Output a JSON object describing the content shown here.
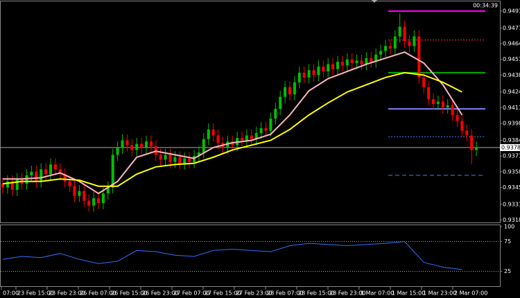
{
  "chart_data": {
    "type": "candlestick",
    "timer": "00:34:39",
    "up_color": "#00c000",
    "down_color": "#ff0000",
    "open": [
      0.9348,
      0.9345,
      0.935,
      0.9343,
      0.9352,
      0.9348,
      0.9355,
      0.9358,
      0.935,
      0.936,
      0.9356,
      0.9364,
      0.936,
      0.9356,
      0.935,
      0.9346,
      0.9338,
      0.9342,
      0.9334,
      0.933,
      0.9336,
      0.9332,
      0.934,
      0.9345,
      0.9372,
      0.9378,
      0.9384,
      0.938,
      0.9376,
      0.9381,
      0.9378,
      0.9383,
      0.9379,
      0.9372,
      0.9368,
      0.9372,
      0.9366,
      0.937,
      0.9365,
      0.9369,
      0.9366,
      0.9371,
      0.9374,
      0.9385,
      0.9393,
      0.9388,
      0.9382,
      0.9378,
      0.9383,
      0.938,
      0.9386,
      0.9384,
      0.9388,
      0.9385,
      0.939,
      0.9394,
      0.9392,
      0.9402,
      0.941,
      0.942,
      0.9428,
      0.9422,
      0.9432,
      0.944,
      0.9436,
      0.9442,
      0.9438,
      0.9445,
      0.9441,
      0.9447,
      0.9443,
      0.9449,
      0.9446,
      0.9451,
      0.9448,
      0.945,
      0.9447,
      0.9452,
      0.9449,
      0.9455,
      0.9458,
      0.9462,
      0.946,
      0.947,
      0.9478,
      0.9466,
      0.9462,
      0.947,
      0.9436,
      0.9428,
      0.9418,
      0.9414,
      0.9416,
      0.9411,
      0.9413,
      0.9405,
      0.94,
      0.9392,
      0.9388,
      0.9376
    ],
    "high": [
      0.9353,
      0.9355,
      0.9355,
      0.9357,
      0.9357,
      0.936,
      0.9363,
      0.9363,
      0.9365,
      0.9365,
      0.9369,
      0.9369,
      0.9365,
      0.9361,
      0.9355,
      0.9351,
      0.9347,
      0.9347,
      0.9339,
      0.9341,
      0.9341,
      0.9345,
      0.935,
      0.9377,
      0.9383,
      0.9389,
      0.9389,
      0.9385,
      0.9386,
      0.9386,
      0.9388,
      0.9388,
      0.9384,
      0.9377,
      0.9377,
      0.9377,
      0.9375,
      0.9375,
      0.9374,
      0.9374,
      0.9376,
      0.9379,
      0.939,
      0.9398,
      0.9398,
      0.9393,
      0.9387,
      0.9388,
      0.9388,
      0.9391,
      0.9391,
      0.9393,
      0.9393,
      0.9395,
      0.9399,
      0.9399,
      0.9407,
      0.9415,
      0.9425,
      0.9433,
      0.9433,
      0.9437,
      0.9445,
      0.9445,
      0.9447,
      0.9447,
      0.945,
      0.945,
      0.9452,
      0.9452,
      0.9454,
      0.9454,
      0.9456,
      0.9456,
      0.9455,
      0.9455,
      0.9457,
      0.9457,
      0.946,
      0.9463,
      0.9467,
      0.9467,
      0.9475,
      0.9489,
      0.9483,
      0.9471,
      0.9475,
      0.9475,
      0.9441,
      0.9433,
      0.9423,
      0.9421,
      0.9421,
      0.9418,
      0.9418,
      0.941,
      0.9405,
      0.9397,
      0.9393,
      0.9383
    ],
    "low": [
      0.934,
      0.934,
      0.9338,
      0.9338,
      0.9343,
      0.9343,
      0.935,
      0.9345,
      0.9345,
      0.9351,
      0.9351,
      0.9355,
      0.9351,
      0.9345,
      0.9341,
      0.9333,
      0.9333,
      0.9329,
      0.9325,
      0.9325,
      0.9327,
      0.9327,
      0.9335,
      0.934,
      0.9367,
      0.9373,
      0.9375,
      0.9371,
      0.9371,
      0.9373,
      0.9373,
      0.9374,
      0.9367,
      0.9363,
      0.9363,
      0.9361,
      0.9361,
      0.936,
      0.936,
      0.9361,
      0.9361,
      0.9366,
      0.9369,
      0.938,
      0.9383,
      0.9377,
      0.9373,
      0.9373,
      0.9375,
      0.9375,
      0.9379,
      0.9379,
      0.938,
      0.938,
      0.9385,
      0.9387,
      0.9387,
      0.9397,
      0.9405,
      0.9415,
      0.9417,
      0.9417,
      0.9427,
      0.9431,
      0.9431,
      0.9433,
      0.9433,
      0.9436,
      0.9436,
      0.9438,
      0.9438,
      0.9441,
      0.9441,
      0.9443,
      0.9443,
      0.9442,
      0.9442,
      0.9444,
      0.9444,
      0.945,
      0.9453,
      0.9455,
      0.9455,
      0.9465,
      0.9461,
      0.9457,
      0.9457,
      0.9431,
      0.9423,
      0.9413,
      0.9409,
      0.9409,
      0.9406,
      0.9406,
      0.94,
      0.9395,
      0.9387,
      0.9383,
      0.9364,
      0.9371
    ],
    "close": [
      0.9345,
      0.935,
      0.9343,
      0.9352,
      0.9348,
      0.9355,
      0.9358,
      0.935,
      0.936,
      0.9356,
      0.9364,
      0.936,
      0.9356,
      0.935,
      0.9346,
      0.9338,
      0.9342,
      0.9334,
      0.933,
      0.9336,
      0.9332,
      0.934,
      0.9345,
      0.9372,
      0.9378,
      0.9384,
      0.938,
      0.9376,
      0.9381,
      0.9378,
      0.9383,
      0.9379,
      0.9372,
      0.9368,
      0.9372,
      0.9366,
      0.937,
      0.9365,
      0.9369,
      0.9366,
      0.9371,
      0.9374,
      0.9385,
      0.9393,
      0.9388,
      0.9382,
      0.9378,
      0.9383,
      0.938,
      0.9386,
      0.9384,
      0.9388,
      0.9385,
      0.939,
      0.9394,
      0.9392,
      0.9402,
      0.941,
      0.942,
      0.9428,
      0.9422,
      0.9432,
      0.944,
      0.9436,
      0.9442,
      0.9438,
      0.9445,
      0.9441,
      0.9447,
      0.9443,
      0.9449,
      0.9446,
      0.9451,
      0.9448,
      0.945,
      0.9447,
      0.9452,
      0.9449,
      0.9455,
      0.9458,
      0.9462,
      0.946,
      0.947,
      0.9478,
      0.9466,
      0.9462,
      0.947,
      0.9436,
      0.9428,
      0.9418,
      0.9414,
      0.9416,
      0.9411,
      0.9413,
      0.9405,
      0.94,
      0.9392,
      0.9388,
      0.9376,
      0.9378
    ],
    "series": [
      {
        "color": "#ffb6c1",
        "x": [
          0,
          4,
          8,
          12,
          16,
          20,
          24,
          28,
          32,
          36,
          40,
          44,
          48,
          52,
          56,
          60,
          64,
          68,
          72,
          76,
          80,
          84,
          88,
          92,
          96
        ],
        "values": [
          0.9352,
          0.9352,
          0.9353,
          0.9357,
          0.935,
          0.934,
          0.935,
          0.937,
          0.9375,
          0.9372,
          0.9369,
          0.9378,
          0.9382,
          0.9384,
          0.9389,
          0.9405,
          0.9425,
          0.9435,
          0.9441,
          0.9447,
          0.9452,
          0.9457,
          0.9448,
          0.943,
          0.9405
        ]
      },
      {
        "color": "#ffff00",
        "x": [
          0,
          4,
          8,
          12,
          16,
          20,
          24,
          28,
          32,
          36,
          40,
          44,
          48,
          52,
          56,
          60,
          64,
          68,
          72,
          76,
          80,
          84,
          88,
          92,
          96
        ],
        "values": [
          0.9348,
          0.935,
          0.935,
          0.9352,
          0.9351,
          0.9346,
          0.9346,
          0.9356,
          0.9362,
          0.9364,
          0.9365,
          0.937,
          0.9376,
          0.938,
          0.9384,
          0.9393,
          0.9405,
          0.9415,
          0.9424,
          0.943,
          0.9436,
          0.944,
          0.9438,
          0.9432,
          0.9424
        ]
      }
    ],
    "levels": [
      {
        "value": 0.9491,
        "color": "#ff00ff",
        "style": "solid"
      },
      {
        "value": 0.9467,
        "color": "#ff3030",
        "style": "dotted"
      },
      {
        "value": 0.944,
        "color": "#00b000",
        "style": "solid"
      },
      {
        "value": 0.941,
        "color": "#8080ff",
        "style": "solid"
      },
      {
        "value": 0.9387,
        "color": "#4080ff",
        "style": "dotted"
      },
      {
        "value": 0.9355,
        "color": "#4080ff",
        "style": "dashed"
      }
    ],
    "current_price": 0.9378,
    "ylim": [
      0.9316,
      0.9499
    ],
    "yticks": [
      0.9491,
      0.9477,
      0.9464,
      0.9451,
      0.9438,
      0.9424,
      0.9411,
      0.9398,
      0.9384,
      0.9371,
      0.9358,
      0.9345,
      0.9331,
      0.9318
    ],
    "xtick_labels": [
      "07:00",
      "23 Feb 15:00",
      "23 Feb 23:00",
      "26 Feb 07:00",
      "26 Feb 15:00",
      "26 Feb 23:00",
      "27 Feb 07:00",
      "27 Feb 15:00",
      "27 Feb 23:00",
      "28 Feb 07:00",
      "28 Feb 15:00",
      "28 Feb 23:00",
      "1 Mar 07:00",
      "1 Mar 15:00",
      "1 Mar 23:00",
      "2 Mar 07:00"
    ],
    "indicator": {
      "color": "#3070ff",
      "x": [
        0,
        4,
        8,
        12,
        16,
        20,
        24,
        28,
        32,
        36,
        40,
        44,
        48,
        52,
        56,
        60,
        64,
        68,
        72,
        76,
        80,
        84,
        88,
        92,
        96
      ],
      "values": [
        45,
        50,
        48,
        55,
        45,
        38,
        42,
        60,
        58,
        52,
        50,
        60,
        62,
        60,
        58,
        68,
        72,
        70,
        68,
        70,
        72,
        75,
        40,
        32,
        28
      ],
      "ylim": [
        0,
        100
      ],
      "yticks": [
        100,
        75,
        25
      ],
      "levels": [
        75,
        25
      ]
    }
  }
}
